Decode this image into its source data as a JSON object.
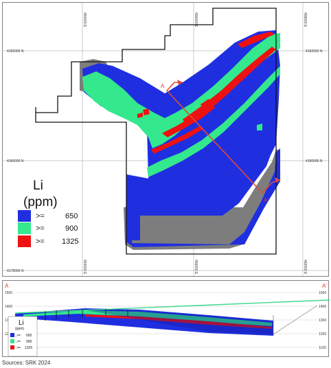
{
  "map": {
    "x_ticks": [
      "454000 E",
      "456000 E",
      "458000 E",
      "460000 E"
    ],
    "y_ticks_left": [
      "4182000 N",
      "4180000 N",
      "4178000 N"
    ],
    "y_ticks_right": [
      "4182000 N",
      "4180000 N",
      "4178000 N"
    ],
    "section_start": "A",
    "section_end": "A'"
  },
  "legend": {
    "title_line1": "Li",
    "title_line2": "(ppm)",
    "items": [
      {
        "op": ">=",
        "value": "650",
        "color": "#1f2fe0"
      },
      {
        "op": ">=",
        "value": "900",
        "color": "#33e88d"
      },
      {
        "op": ">=",
        "value": "1325",
        "color": "#ee1111"
      }
    ]
  },
  "section": {
    "label_left": "A",
    "label_right": "A'",
    "elev_ticks_left": [
      "1500",
      "1400",
      "1300",
      "1200"
    ],
    "elev_ticks_right": [
      "1500",
      "1400",
      "1300",
      "1200",
      "1100"
    ],
    "legend": {
      "title_line1": "Li",
      "title_line2": "(ppm)",
      "items": [
        {
          "op": ">=",
          "value": "650"
        },
        {
          "op": ">=",
          "value": "900"
        },
        {
          "op": ">=",
          "value": "1325"
        }
      ]
    }
  },
  "source": "Sources: SRK 2024",
  "colors": {
    "li_650": "#1f2fe0",
    "li_900": "#33e88d",
    "li_1325": "#ee1111",
    "pit_wall": "#7d7d7d",
    "section_line": "#e04a3a",
    "topography": "#39d98a"
  }
}
